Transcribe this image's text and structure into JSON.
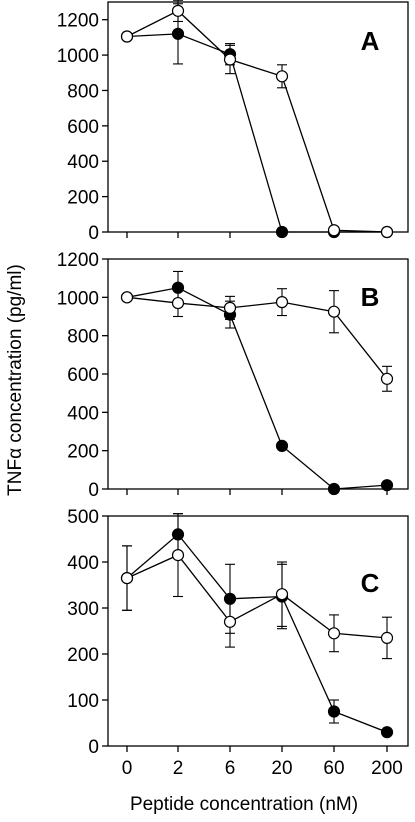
{
  "y_axis_label": "TNFα concentration (pg/ml)",
  "x_axis_label": "Peptide concentration (nM)",
  "chart_data": [
    {
      "type": "line",
      "panel": "A",
      "categories": [
        "0",
        "2",
        "6",
        "20",
        "60",
        "200"
      ],
      "ylim": [
        0,
        1300
      ],
      "yticks": [
        0,
        200,
        400,
        600,
        800,
        1000,
        1200
      ],
      "series": [
        {
          "marker": "filled",
          "values": [
            1105,
            1120,
            1005,
            0,
            0,
            0
          ],
          "errors": [
            0,
            170,
            60,
            0,
            0,
            0
          ]
        },
        {
          "marker": "open",
          "values": [
            1105,
            1250,
            975,
            880,
            10,
            0
          ],
          "errors": [
            0,
            60,
            80,
            65,
            0,
            0
          ]
        }
      ]
    },
    {
      "type": "line",
      "panel": "B",
      "categories": [
        "0",
        "2",
        "6",
        "20",
        "60",
        "200"
      ],
      "ylim": [
        0,
        1200
      ],
      "yticks": [
        0,
        200,
        400,
        600,
        800,
        1000,
        1200
      ],
      "series": [
        {
          "marker": "filled",
          "values": [
            1000,
            1050,
            910,
            225,
            0,
            20
          ],
          "errors": [
            0,
            85,
            70,
            0,
            0,
            0
          ]
        },
        {
          "marker": "open",
          "values": [
            1000,
            970,
            945,
            975,
            925,
            575
          ],
          "errors": [
            0,
            70,
            60,
            70,
            110,
            65
          ]
        }
      ]
    },
    {
      "type": "line",
      "panel": "C",
      "categories": [
        "0",
        "2",
        "6",
        "20",
        "60",
        "200"
      ],
      "ylim": [
        0,
        500
      ],
      "yticks": [
        0,
        100,
        200,
        300,
        400,
        500
      ],
      "series": [
        {
          "marker": "filled",
          "values": [
            365,
            460,
            320,
            325,
            75,
            30
          ],
          "errors": [
            70,
            45,
            75,
            70,
            25,
            0
          ]
        },
        {
          "marker": "open",
          "values": [
            365,
            415,
            270,
            330,
            245,
            235
          ],
          "errors": [
            70,
            90,
            55,
            70,
            40,
            45
          ]
        }
      ]
    }
  ]
}
